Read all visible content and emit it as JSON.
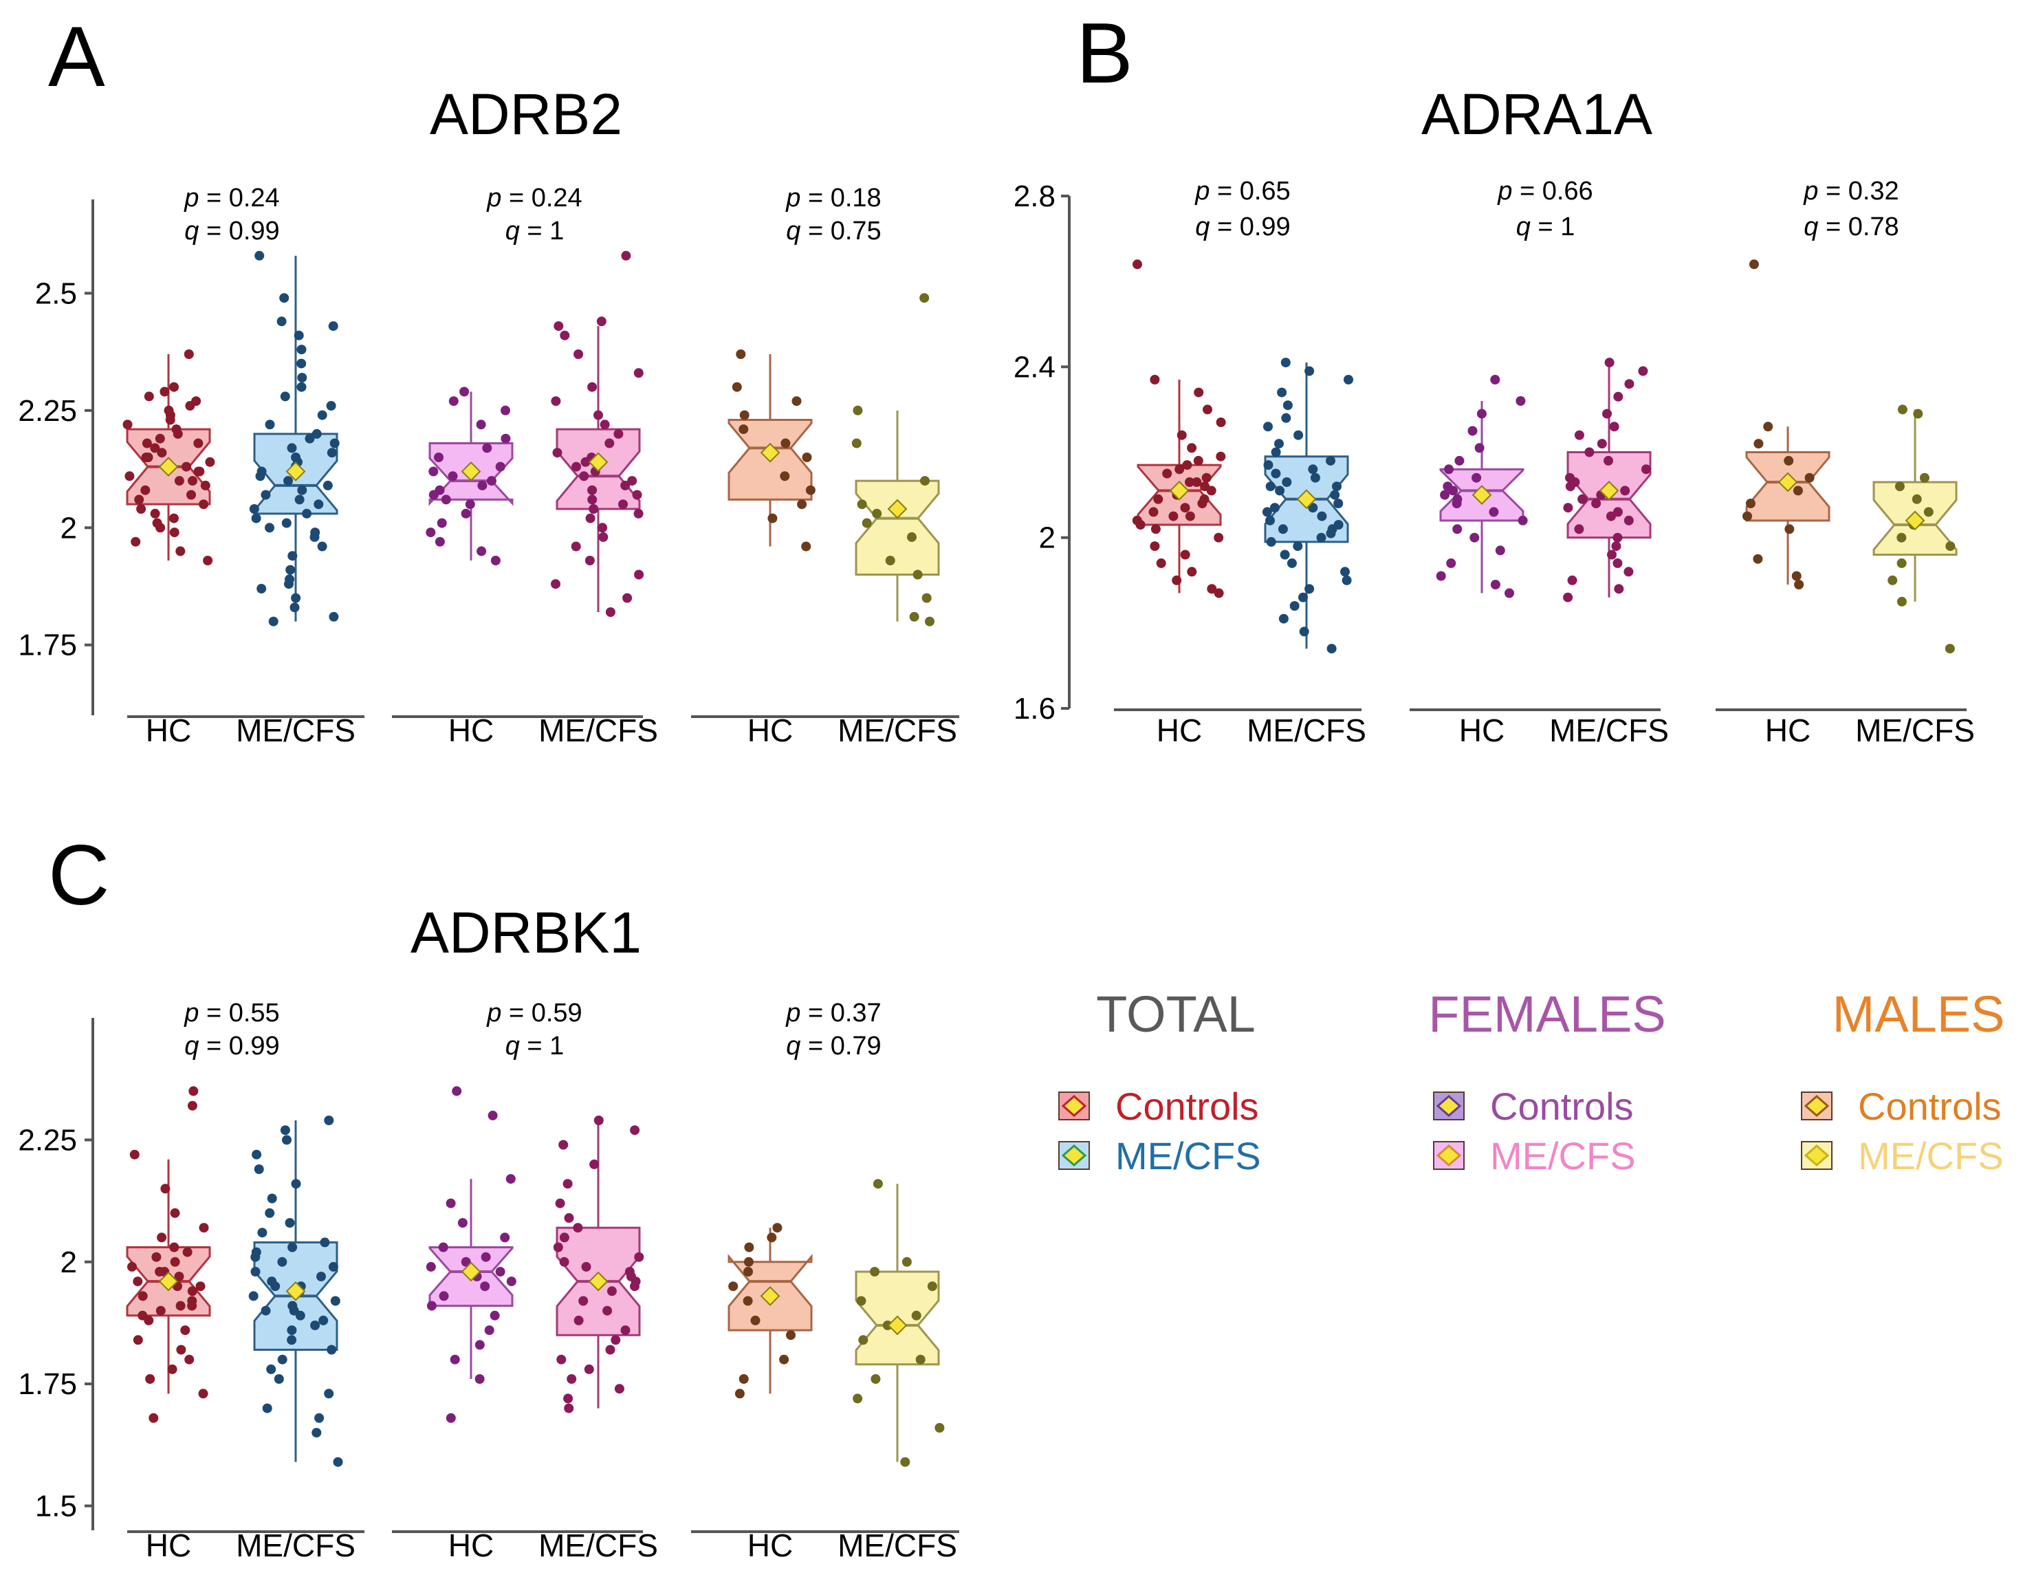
{
  "colors": {
    "hc_total_fill": "#f4b8bb",
    "hc_total_line": "#b0343f",
    "hc_total_dot": "#8b1a2b",
    "me_total_fill": "#b9dcf5",
    "me_total_line": "#2d5f87",
    "me_total_dot": "#1d4a73",
    "hc_fem_fill": "#f4b8f2",
    "hc_fem_line": "#9a4aa0",
    "hc_fem_dot": "#7e1f7b",
    "me_fem_fill": "#f7b6dc",
    "me_fem_line": "#a23a78",
    "me_fem_dot": "#8b1a5b",
    "hc_male_fill": "#f7c5ae",
    "hc_male_line": "#a86645",
    "hc_male_dot": "#6b3b1c",
    "me_male_fill": "#faf2b0",
    "me_male_line": "#9c9650",
    "me_male_dot": "#6f6b1f",
    "mean_marker": "#f6e43c",
    "axis": "#555555",
    "legend_total": "#595959",
    "legend_females": "#a855a8",
    "legend_males": "#e8832a",
    "legend_total_controls": "#c0202a",
    "legend_total_mecfs": "#1f6fa8",
    "legend_fem_controls": "#9c4aa2",
    "legend_fem_mecfs": "#f086c8",
    "legend_male_controls": "#e07f22",
    "legend_male_mecfs": "#f7d27a"
  },
  "group_labels": [
    "HC",
    "ME/CFS"
  ],
  "chart_data": [
    {
      "type": "box",
      "panel_letter": "A",
      "title": "ADRB2",
      "ylim": [
        1.6,
        2.7
      ],
      "yticks": [
        {
          "v": 1.75,
          "label": "1.75"
        },
        {
          "v": 2.0,
          "label": "2"
        },
        {
          "v": 2.25,
          "label": "2.25"
        },
        {
          "v": 2.5,
          "label": "2.5"
        }
      ],
      "facets": [
        {
          "name": "TOTAL",
          "p": "= 0.24",
          "q": "= 0.99",
          "boxes": [
            {
              "group": "HC",
              "whisker_low": 1.93,
              "q1": 2.05,
              "median": 2.13,
              "q3": 2.21,
              "whisker_high": 2.37,
              "mean": 2.13,
              "points": [
                2.37,
                2.3,
                2.29,
                2.28,
                2.27,
                2.26,
                2.25,
                2.24,
                2.23,
                2.22,
                2.21,
                2.2,
                2.19,
                2.18,
                2.17,
                2.16,
                2.15,
                2.14,
                2.13,
                2.12,
                2.12,
                2.11,
                2.1,
                2.09,
                2.08,
                2.07,
                2.06,
                2.05,
                2.04,
                2.03,
                2.02,
                2.01,
                2.0,
                1.99,
                1.97,
                1.95,
                1.93,
                2.18,
                2.15,
                2.1
              ]
            },
            {
              "group": "ME/CFS",
              "whisker_low": 1.8,
              "q1": 2.03,
              "median": 2.09,
              "q3": 2.2,
              "whisker_high": 2.58,
              "mean": 2.12,
              "points": [
                2.58,
                2.49,
                2.44,
                2.43,
                2.41,
                2.38,
                2.35,
                2.32,
                2.3,
                2.28,
                2.26,
                2.24,
                2.22,
                2.2,
                2.19,
                2.18,
                2.17,
                2.16,
                2.15,
                2.14,
                2.13,
                2.12,
                2.11,
                2.1,
                2.09,
                2.08,
                2.07,
                2.06,
                2.05,
                2.04,
                2.03,
                2.02,
                2.01,
                2.0,
                1.99,
                1.98,
                1.96,
                1.94,
                1.91,
                1.89,
                1.88,
                1.87,
                1.85,
                1.83,
                1.81,
                1.8
              ]
            }
          ]
        },
        {
          "name": "FEMALES",
          "p": "= 0.24",
          "q": "= 1",
          "boxes": [
            {
              "group": "HC",
              "whisker_low": 1.93,
              "q1": 2.06,
              "median": 2.1,
              "q3": 2.18,
              "whisker_high": 2.29,
              "mean": 2.12,
              "points": [
                2.29,
                2.27,
                2.25,
                2.22,
                2.19,
                2.17,
                2.15,
                2.13,
                2.12,
                2.11,
                2.1,
                2.09,
                2.08,
                2.07,
                2.06,
                2.05,
                2.03,
                2.01,
                1.99,
                1.97,
                1.95,
                1.93
              ]
            },
            {
              "group": "ME/CFS",
              "whisker_low": 1.82,
              "q1": 2.04,
              "median": 2.11,
              "q3": 2.21,
              "whisker_high": 2.43,
              "mean": 2.14,
              "points": [
                2.58,
                2.44,
                2.43,
                2.41,
                2.37,
                2.33,
                2.3,
                2.27,
                2.24,
                2.22,
                2.2,
                2.18,
                2.16,
                2.15,
                2.14,
                2.13,
                2.12,
                2.11,
                2.1,
                2.09,
                2.08,
                2.07,
                2.06,
                2.05,
                2.04,
                2.03,
                2.02,
                2.0,
                1.98,
                1.96,
                1.93,
                1.9,
                1.88,
                1.85,
                1.82
              ]
            }
          ]
        },
        {
          "name": "MALES",
          "p": "= 0.18",
          "q": "= 0.75",
          "boxes": [
            {
              "group": "HC",
              "whisker_low": 1.96,
              "q1": 2.06,
              "median": 2.17,
              "q3": 2.23,
              "whisker_high": 2.37,
              "mean": 2.16,
              "points": [
                2.37,
                2.3,
                2.27,
                2.24,
                2.21,
                2.18,
                2.15,
                2.11,
                2.08,
                2.05,
                2.02,
                1.96
              ]
            },
            {
              "group": "ME/CFS",
              "whisker_low": 1.8,
              "q1": 1.9,
              "median": 2.02,
              "q3": 2.1,
              "whisker_high": 2.25,
              "mean": 2.04,
              "points": [
                2.49,
                2.25,
                2.18,
                2.1,
                2.05,
                2.03,
                2.01,
                1.98,
                1.93,
                1.9,
                1.85,
                1.81,
                1.8
              ]
            }
          ]
        }
      ]
    },
    {
      "type": "box",
      "panel_letter": "B",
      "title": "ADRA1A",
      "ylim": [
        1.6,
        2.8
      ],
      "yticks": [
        {
          "v": 1.6,
          "label": "1.6"
        },
        {
          "v": 2.0,
          "label": "2"
        },
        {
          "v": 2.4,
          "label": "2.4"
        },
        {
          "v": 2.8,
          "label": "2.8"
        }
      ],
      "facets": [
        {
          "name": "TOTAL",
          "p": "= 0.65",
          "q": "= 0.99",
          "boxes": [
            {
              "group": "HC",
              "whisker_low": 1.87,
              "q1": 2.03,
              "median": 2.11,
              "q3": 2.17,
              "whisker_high": 2.37,
              "mean": 2.11,
              "points": [
                2.64,
                2.37,
                2.34,
                2.3,
                2.27,
                2.24,
                2.21,
                2.19,
                2.17,
                2.16,
                2.15,
                2.14,
                2.13,
                2.12,
                2.11,
                2.1,
                2.09,
                2.08,
                2.07,
                2.06,
                2.05,
                2.04,
                2.03,
                2.02,
                2.0,
                1.98,
                1.96,
                1.94,
                1.92,
                1.9,
                1.88,
                1.87,
                2.18,
                2.13,
                2.09,
                2.05
              ]
            },
            {
              "group": "ME/CFS",
              "whisker_low": 1.74,
              "q1": 1.99,
              "median": 2.09,
              "q3": 2.19,
              "whisker_high": 2.41,
              "mean": 2.09,
              "points": [
                2.41,
                2.39,
                2.37,
                2.34,
                2.31,
                2.28,
                2.26,
                2.24,
                2.22,
                2.2,
                2.18,
                2.17,
                2.16,
                2.15,
                2.14,
                2.13,
                2.12,
                2.11,
                2.1,
                2.09,
                2.08,
                2.07,
                2.06,
                2.05,
                2.04,
                2.03,
                2.02,
                2.01,
                2.0,
                1.99,
                1.98,
                1.96,
                1.94,
                1.92,
                1.9,
                1.88,
                1.86,
                1.84,
                1.81,
                1.78,
                1.74,
                2.12,
                2.07,
                2.02
              ]
            }
          ]
        },
        {
          "name": "FEMALES",
          "p": "= 0.66",
          "q": "= 1",
          "boxes": [
            {
              "group": "HC",
              "whisker_low": 1.87,
              "q1": 2.04,
              "median": 2.11,
              "q3": 2.16,
              "whisker_high": 2.32,
              "mean": 2.1,
              "points": [
                2.37,
                2.32,
                2.29,
                2.25,
                2.21,
                2.18,
                2.16,
                2.14,
                2.12,
                2.11,
                2.1,
                2.09,
                2.08,
                2.06,
                2.04,
                2.02,
                2.0,
                1.97,
                1.94,
                1.91,
                1.89,
                1.87
              ]
            },
            {
              "group": "ME/CFS",
              "whisker_low": 1.86,
              "q1": 2.0,
              "median": 2.09,
              "q3": 2.2,
              "whisker_high": 2.41,
              "mean": 2.11,
              "points": [
                2.41,
                2.39,
                2.36,
                2.33,
                2.29,
                2.26,
                2.24,
                2.22,
                2.2,
                2.18,
                2.16,
                2.14,
                2.13,
                2.12,
                2.11,
                2.1,
                2.09,
                2.08,
                2.07,
                2.06,
                2.05,
                2.04,
                2.02,
                2.0,
                1.98,
                1.96,
                1.94,
                1.92,
                1.9,
                1.88,
                1.86
              ]
            }
          ]
        },
        {
          "name": "MALES",
          "p": "= 0.32",
          "q": "= 0.78",
          "boxes": [
            {
              "group": "HC",
              "whisker_low": 1.89,
              "q1": 2.04,
              "median": 2.13,
              "q3": 2.2,
              "whisker_high": 2.26,
              "mean": 2.13,
              "points": [
                2.64,
                2.26,
                2.22,
                2.18,
                2.14,
                2.11,
                2.08,
                2.05,
                2.02,
                1.95,
                1.91,
                1.89
              ]
            },
            {
              "group": "ME/CFS",
              "whisker_low": 1.85,
              "q1": 1.96,
              "median": 2.03,
              "q3": 2.13,
              "whisker_high": 2.3,
              "mean": 2.04,
              "points": [
                2.3,
                2.29,
                2.14,
                2.12,
                2.09,
                2.06,
                2.03,
                2.0,
                1.98,
                1.94,
                1.9,
                1.85,
                1.74
              ]
            }
          ]
        }
      ]
    },
    {
      "type": "box",
      "panel_letter": "C",
      "title": "ADRBK1",
      "ylim": [
        1.45,
        2.5
      ],
      "yticks": [
        {
          "v": 1.5,
          "label": "1.5"
        },
        {
          "v": 1.75,
          "label": "1.75"
        },
        {
          "v": 2.0,
          "label": "2"
        },
        {
          "v": 2.25,
          "label": "2.25"
        }
      ],
      "facets": [
        {
          "name": "TOTAL",
          "p": "= 0.55",
          "q": "= 0.99",
          "boxes": [
            {
              "group": "HC",
              "whisker_low": 1.73,
              "q1": 1.89,
              "median": 1.96,
              "q3": 2.03,
              "whisker_high": 2.21,
              "mean": 1.96,
              "points": [
                2.35,
                2.32,
                2.22,
                2.15,
                2.1,
                2.07,
                2.05,
                2.03,
                2.02,
                2.01,
                2.0,
                1.99,
                1.98,
                1.97,
                1.96,
                1.95,
                1.94,
                1.93,
                1.92,
                1.91,
                1.9,
                1.89,
                1.88,
                1.86,
                1.84,
                1.82,
                1.8,
                1.78,
                1.76,
                1.73,
                1.68,
                1.98,
                1.95,
                1.91
              ]
            },
            {
              "group": "ME/CFS",
              "whisker_low": 1.59,
              "q1": 1.82,
              "median": 1.93,
              "q3": 2.04,
              "whisker_high": 2.29,
              "mean": 1.94,
              "points": [
                2.29,
                2.27,
                2.25,
                2.22,
                2.19,
                2.16,
                2.13,
                2.1,
                2.08,
                2.06,
                2.04,
                2.03,
                2.02,
                2.01,
                2.0,
                1.99,
                1.98,
                1.97,
                1.96,
                1.95,
                1.94,
                1.93,
                1.92,
                1.91,
                1.9,
                1.89,
                1.88,
                1.87,
                1.86,
                1.84,
                1.82,
                1.8,
                1.78,
                1.76,
                1.73,
                1.7,
                1.68,
                1.65,
                1.59,
                1.95,
                1.9
              ]
            }
          ]
        },
        {
          "name": "FEMALES",
          "p": "= 0.59",
          "q": "= 1",
          "boxes": [
            {
              "group": "HC",
              "whisker_low": 1.76,
              "q1": 1.91,
              "median": 1.98,
              "q3": 2.03,
              "whisker_high": 2.17,
              "mean": 1.98,
              "points": [
                2.35,
                2.3,
                2.17,
                2.12,
                2.08,
                2.05,
                2.03,
                2.01,
                2.0,
                1.99,
                1.98,
                1.97,
                1.96,
                1.95,
                1.93,
                1.91,
                1.89,
                1.86,
                1.83,
                1.8,
                1.76,
                1.68
              ]
            },
            {
              "group": "ME/CFS",
              "whisker_low": 1.7,
              "q1": 1.85,
              "median": 1.96,
              "q3": 2.07,
              "whisker_high": 2.29,
              "mean": 1.96,
              "points": [
                2.29,
                2.27,
                2.24,
                2.2,
                2.16,
                2.12,
                2.09,
                2.07,
                2.05,
                2.03,
                2.01,
                2.0,
                1.99,
                1.98,
                1.97,
                1.96,
                1.95,
                1.94,
                1.92,
                1.9,
                1.88,
                1.86,
                1.84,
                1.82,
                1.8,
                1.78,
                1.76,
                1.74,
                1.72,
                1.7
              ]
            }
          ]
        },
        {
          "name": "MALES",
          "p": "= 0.37",
          "q": "= 0.79",
          "boxes": [
            {
              "group": "HC",
              "whisker_low": 1.73,
              "q1": 1.86,
              "median": 1.96,
              "q3": 2.0,
              "whisker_high": 2.07,
              "mean": 1.93,
              "points": [
                2.07,
                2.05,
                2.03,
                2.0,
                1.98,
                1.95,
                1.92,
                1.88,
                1.85,
                1.8,
                1.76,
                1.73
              ]
            },
            {
              "group": "ME/CFS",
              "whisker_low": 1.59,
              "q1": 1.79,
              "median": 1.87,
              "q3": 1.98,
              "whisker_high": 2.16,
              "mean": 1.87,
              "points": [
                2.16,
                2.0,
                1.98,
                1.95,
                1.92,
                1.89,
                1.87,
                1.84,
                1.8,
                1.76,
                1.72,
                1.66,
                1.59
              ]
            }
          ]
        }
      ]
    }
  ],
  "legend": {
    "groups": [
      {
        "key": "total",
        "heading": "TOTAL",
        "entries": [
          "Controls",
          "ME/CFS"
        ]
      },
      {
        "key": "females",
        "heading": "FEMALES",
        "entries": [
          "Controls",
          "ME/CFS"
        ]
      },
      {
        "key": "males",
        "heading": "MALES",
        "entries": [
          "Controls",
          "ME/CFS"
        ]
      }
    ]
  }
}
